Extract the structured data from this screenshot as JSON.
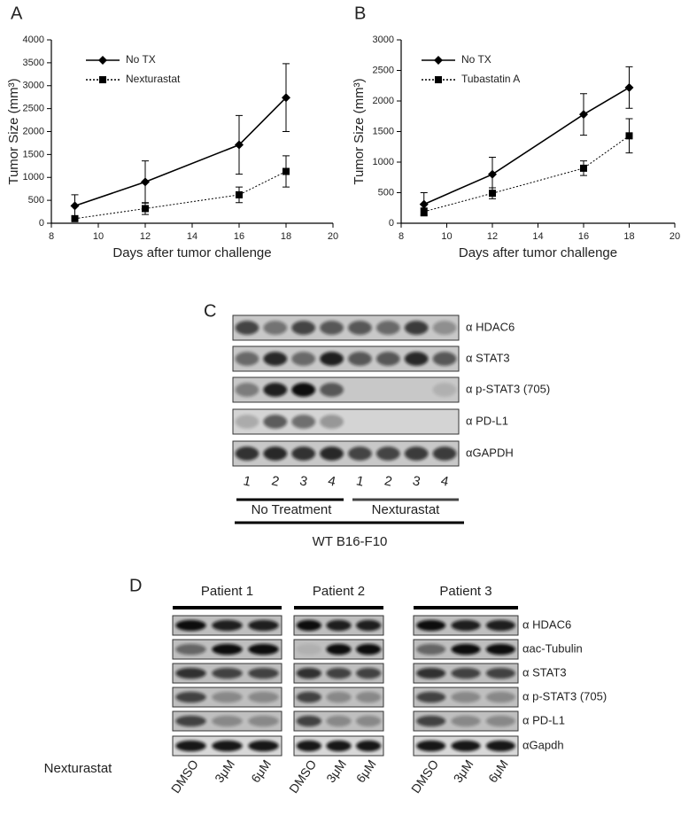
{
  "chart_data": [
    {
      "type": "line",
      "panel_label": "A",
      "x_label": "Days after tumor challenge",
      "y_label": "Tumor Size (mm³)",
      "x": [
        9,
        12,
        16,
        18
      ],
      "xlim": [
        8,
        20
      ],
      "xticks": [
        8,
        10,
        12,
        14,
        16,
        18,
        20
      ],
      "ylim": [
        0,
        4000
      ],
      "yticks": [
        0,
        500,
        1000,
        1500,
        2000,
        2500,
        3000,
        3500,
        4000
      ],
      "legend": "upper left",
      "series": [
        {
          "name": "No TX",
          "color": "#000000",
          "line_style": "solid",
          "marker": "diamond",
          "values": [
            380,
            900,
            1710,
            2740
          ],
          "errors": [
            240,
            460,
            640,
            740
          ]
        },
        {
          "name": "Nexturastat",
          "color": "#000000",
          "line_style": "dotted",
          "marker": "square",
          "values": [
            100,
            320,
            620,
            1130
          ],
          "errors": [
            50,
            130,
            170,
            340
          ]
        }
      ]
    },
    {
      "type": "line",
      "panel_label": "B",
      "x_label": "Days after tumor challenge",
      "y_label": "Tumor Size (mm³)",
      "x": [
        9,
        12,
        16,
        18
      ],
      "xlim": [
        8,
        20
      ],
      "xticks": [
        8,
        10,
        12,
        14,
        16,
        18,
        20
      ],
      "ylim": [
        0,
        3000
      ],
      "yticks": [
        0,
        500,
        1000,
        1500,
        2000,
        2500,
        3000
      ],
      "legend": "upper left",
      "series": [
        {
          "name": "No TX",
          "color": "#000000",
          "line_style": "solid",
          "marker": "diamond",
          "values": [
            310,
            800,
            1780,
            2220
          ],
          "errors": [
            190,
            280,
            340,
            340
          ]
        },
        {
          "name": "Tubastatin A",
          "color": "#000000",
          "line_style": "dotted",
          "marker": "square",
          "values": [
            190,
            490,
            900,
            1430
          ],
          "errors": [
            60,
            90,
            120,
            280
          ]
        }
      ]
    }
  ],
  "panel_c": {
    "label": "C",
    "rows": [
      "α HDAC6",
      "α STAT3",
      "α p-STAT3 (705)",
      "α PD-L1",
      "αGAPDH"
    ],
    "lanes": [
      "1",
      "2",
      "3",
      "4",
      "1",
      "2",
      "3",
      "4"
    ],
    "groups": [
      "No Treatment",
      "Nexturastat"
    ],
    "cell_line": "WT B16-F10"
  },
  "panel_d": {
    "label": "D",
    "patients": [
      "Patient 1",
      "Patient 2",
      "Patient 3"
    ],
    "rows": [
      "α HDAC6",
      "αac-Tubulin",
      "α STAT3",
      "α p-STAT3 (705)",
      "α PD-L1",
      "αGapdh"
    ],
    "treatment": "Nexturastat",
    "lanes": [
      "DMSO",
      "3μM",
      "6μM"
    ]
  }
}
